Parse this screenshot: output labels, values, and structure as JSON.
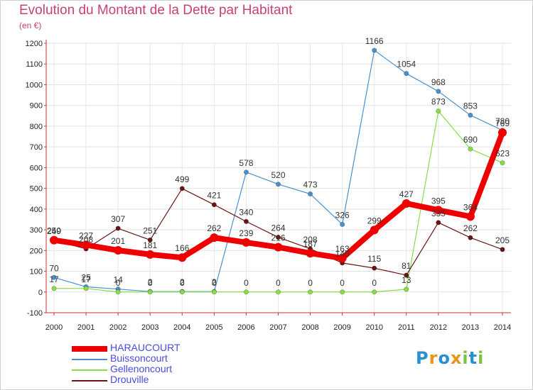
{
  "chart_data": {
    "type": "line",
    "title": "Evolution du Montant de la Dette par Habitant",
    "ylabel": "(en €)",
    "xlabel": "",
    "ylim": [
      -100,
      1200
    ],
    "yticks": [
      -100,
      0,
      100,
      200,
      300,
      400,
      500,
      600,
      700,
      800,
      900,
      1000,
      1100,
      1200
    ],
    "grid": true,
    "legend_position": "bottom-left",
    "x": [
      "2000",
      "2001",
      "2002",
      "2003",
      "2004",
      "2005",
      "2006",
      "2007",
      "2008",
      "2009",
      "2010",
      "2011",
      "2012",
      "2013",
      "2014"
    ],
    "series": [
      {
        "name": "HARAUCOURT",
        "color": "#ee0000",
        "values": [
          250,
          227,
          201,
          181,
          166,
          262,
          239,
          216,
          187,
          163,
          299,
          427,
          395,
          364,
          769
        ]
      },
      {
        "name": "Buissoncourt",
        "color": "#4a90d0",
        "values": [
          70,
          25,
          14,
          2,
          2,
          2,
          578,
          520,
          473,
          326,
          1166,
          1054,
          968,
          853,
          780
        ]
      },
      {
        "name": "Gellenoncourt",
        "color": "#88dd44",
        "values": [
          17,
          17,
          0,
          0,
          0,
          0,
          0,
          0,
          0,
          0,
          0,
          13,
          873,
          690,
          623
        ]
      },
      {
        "name": "Drouville",
        "color": "#6b1414",
        "values": [
          249,
          208,
          307,
          251,
          499,
          421,
          340,
          264,
          208,
          140,
          115,
          81,
          335,
          262,
          205
        ]
      }
    ]
  },
  "logo": {
    "letters": [
      {
        "ch": "P",
        "color": "#2a8fd0"
      },
      {
        "ch": "r",
        "color": "#e8941a"
      },
      {
        "ch": "o",
        "color": "#2a8fd0"
      },
      {
        "ch": "x",
        "color": "#e8941a"
      },
      {
        "ch": "i",
        "color": "#7cc142"
      },
      {
        "ch": "t",
        "color": "#2a8fd0"
      },
      {
        "ch": "i",
        "color": "#7cc142"
      }
    ]
  }
}
